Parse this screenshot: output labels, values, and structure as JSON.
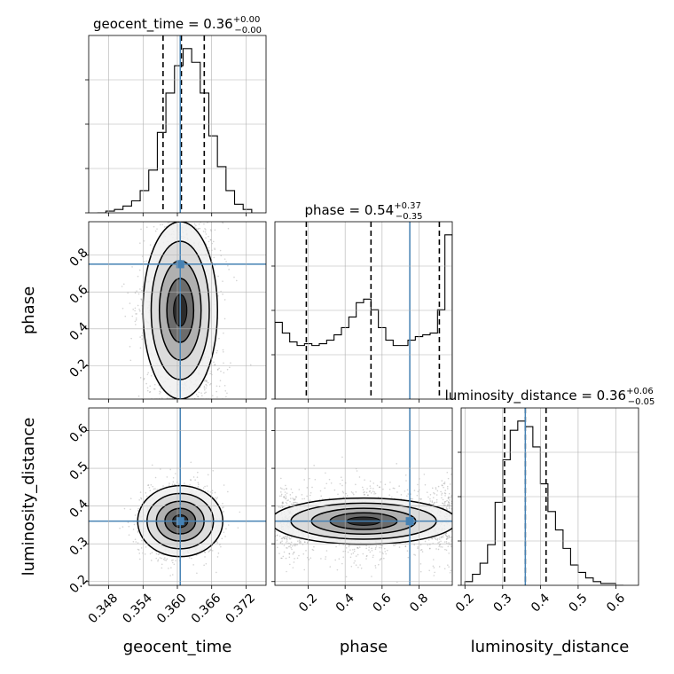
{
  "chart_data": {
    "type": "corner",
    "parameters": [
      "geocent_time",
      "phase",
      "luminosity_distance"
    ],
    "truths": {
      "geocent_time": 0.3605,
      "phase": 0.75,
      "luminosity_distance": 0.36
    },
    "colors": {
      "truth": "#4682b4",
      "hist": "#000000",
      "grid": "#b0b0b0",
      "scatter": "#808080",
      "quantile": "#000000"
    },
    "grid": true,
    "titles": [
      {
        "param": "geocent_time",
        "name": "geocent_time",
        "value": "0.36",
        "plus": "+0.00",
        "minus": "−0.00"
      },
      {
        "param": "phase",
        "name": "phase",
        "value": "0.54",
        "plus": "+0.37",
        "minus": "−0.35"
      },
      {
        "param": "luminosity_distance",
        "name": "luminosity_distance",
        "value": "0.36",
        "plus": "+0.06",
        "minus": "−0.05"
      }
    ],
    "axes": {
      "geocent_time": {
        "range": [
          0.3445,
          0.3755
        ],
        "ticks": [
          0.348,
          0.354,
          0.36,
          0.366,
          0.372
        ],
        "tick_labels": [
          "0.348",
          "0.354",
          "0.360",
          "0.366",
          "0.372"
        ],
        "label": "geocent_time"
      },
      "phase": {
        "range": [
          0.02,
          0.98
        ],
        "ticks": [
          0.2,
          0.4,
          0.6,
          0.8
        ],
        "tick_labels": [
          "0.2",
          "0.4",
          "0.6",
          "0.8"
        ],
        "label": "phase"
      },
      "luminosity_distance": {
        "range": [
          0.19,
          0.66
        ],
        "ticks": [
          0.2,
          0.3,
          0.4,
          0.5,
          0.6
        ],
        "tick_labels": [
          "0.2",
          "0.3",
          "0.4",
          "0.5",
          "0.6"
        ],
        "label": "luminosity_distance"
      }
    },
    "marginals": {
      "geocent_time": {
        "bin_edges": [
          0.346,
          0.3475,
          0.349,
          0.3505,
          0.352,
          0.3535,
          0.355,
          0.3565,
          0.358,
          0.3595,
          0.361,
          0.3625,
          0.364,
          0.3655,
          0.367,
          0.3685,
          0.37,
          0.3715,
          0.373
        ],
        "counts": [
          0,
          1,
          2,
          4,
          7,
          13,
          25,
          47,
          70,
          86,
          96,
          88,
          70,
          45,
          27,
          13,
          5,
          2
        ],
        "quantiles": [
          0.3575,
          0.3607,
          0.3647
        ]
      },
      "phase": {
        "bin_edges": [
          0.02,
          0.06,
          0.1,
          0.14,
          0.18,
          0.22,
          0.26,
          0.3,
          0.34,
          0.38,
          0.42,
          0.46,
          0.5,
          0.54,
          0.58,
          0.62,
          0.66,
          0.7,
          0.74,
          0.78,
          0.82,
          0.86,
          0.9,
          0.94,
          0.98
        ],
        "counts": [
          43,
          37,
          32,
          30,
          31,
          30,
          31,
          33,
          36,
          40,
          46,
          54,
          56,
          50,
          40,
          33,
          30,
          30,
          33,
          35,
          36,
          37,
          50,
          92
        ],
        "quantiles": [
          0.19,
          0.54,
          0.91
        ]
      },
      "luminosity_distance": {
        "bin_edges": [
          0.2,
          0.22,
          0.24,
          0.26,
          0.28,
          0.3,
          0.32,
          0.34,
          0.36,
          0.38,
          0.4,
          0.42,
          0.44,
          0.46,
          0.48,
          0.5,
          0.52,
          0.54,
          0.56,
          0.58,
          0.6,
          0.62
        ],
        "counts": [
          2,
          6,
          12,
          22,
          45,
          68,
          84,
          89,
          86,
          75,
          55,
          40,
          30,
          20,
          11,
          7,
          4,
          2,
          1,
          1,
          0
        ],
        "quantiles": [
          0.305,
          0.36,
          0.415
        ]
      }
    }
  }
}
